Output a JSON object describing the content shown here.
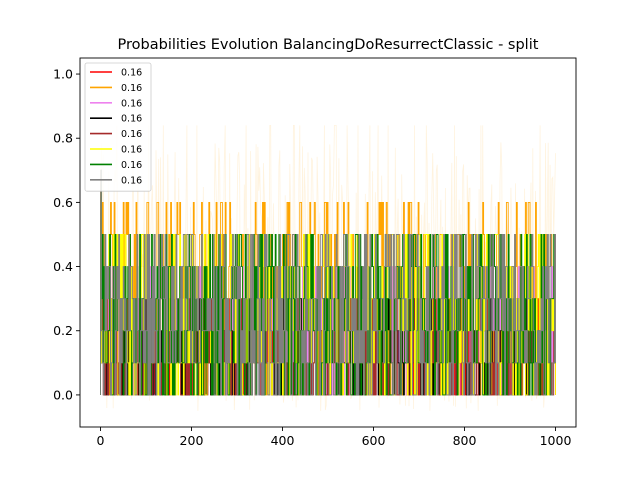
{
  "chart_data": {
    "type": "line",
    "title": "Probabilities Evolution BalancingDoResurrectClassic  - split",
    "xlabel": "",
    "ylabel": "",
    "xlim": [
      -45,
      1045
    ],
    "ylim": [
      -0.1,
      1.05
    ],
    "x_ticks": [
      0,
      200,
      400,
      600,
      800,
      1000
    ],
    "x_tick_labels": [
      "0",
      "200",
      "400",
      "600",
      "800",
      "1000"
    ],
    "y_ticks": [
      0.0,
      0.2,
      0.4,
      0.6,
      0.8,
      1.0
    ],
    "y_tick_labels": [
      "0.0",
      "0.2",
      "0.4",
      "0.6",
      "0.8",
      "1.0"
    ],
    "grid": false,
    "legend_position": "top-left",
    "x_range": [
      0,
      1000
    ],
    "series": [
      {
        "name": "0.16",
        "color": "#ff0000",
        "levels": [
          0.0,
          0.1,
          0.2,
          0.3
        ],
        "start": 0.7
      },
      {
        "name": "0.16",
        "color": "#ffa500",
        "levels": [
          0.0,
          0.1,
          0.2,
          0.3,
          0.4,
          0.5,
          0.6
        ],
        "start": 0.7
      },
      {
        "name": "0.16",
        "color": "#ee82ee",
        "levels": [
          0.0,
          0.1,
          0.2,
          0.3,
          0.4
        ],
        "start": 0.7
      },
      {
        "name": "0.16",
        "color": "#000000",
        "levels": [
          0.0,
          0.1,
          0.2,
          0.3
        ],
        "start": 0.7
      },
      {
        "name": "0.16",
        "color": "#a52a2a",
        "levels": [
          0.0,
          0.1,
          0.2,
          0.3
        ],
        "start": 0.7
      },
      {
        "name": "0.16",
        "color": "#ffff00",
        "levels": [
          0.0,
          0.1,
          0.2,
          0.3,
          0.4,
          0.5
        ],
        "start": 0.7
      },
      {
        "name": "0.16",
        "color": "#008000",
        "levels": [
          0.0,
          0.1,
          0.2,
          0.3,
          0.4,
          0.5
        ],
        "start": 0.7
      },
      {
        "name": "0.16",
        "color": "#808080",
        "levels": [
          0.0,
          0.1,
          0.2,
          0.3,
          0.4,
          0.5
        ],
        "start": 0.7
      }
    ],
    "background_band": {
      "color": "#ffa500",
      "low": -0.05,
      "high": 0.84
    }
  }
}
